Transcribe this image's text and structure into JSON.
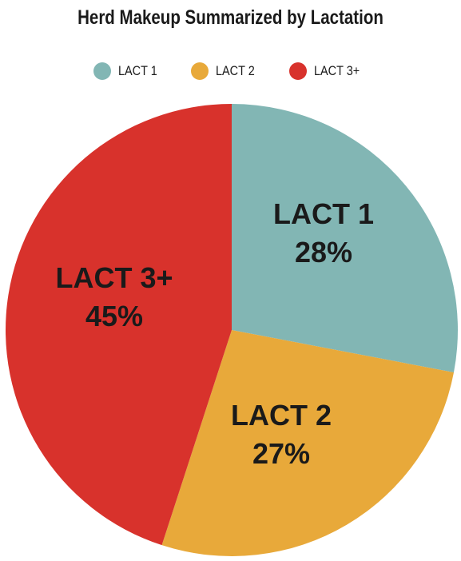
{
  "chart_data": {
    "type": "pie",
    "title": "Herd Makeup Summarized by Lactation",
    "legend_position": "top",
    "slices": [
      {
        "name": "LACT 1",
        "value": 28,
        "value_label": "28%",
        "color": "#82b6b4"
      },
      {
        "name": "LACT 2",
        "value": 27,
        "value_label": "27%",
        "color": "#e8a93a"
      },
      {
        "name": "LACT 3+",
        "value": 45,
        "value_label": "45%",
        "color": "#d8322c"
      }
    ]
  }
}
